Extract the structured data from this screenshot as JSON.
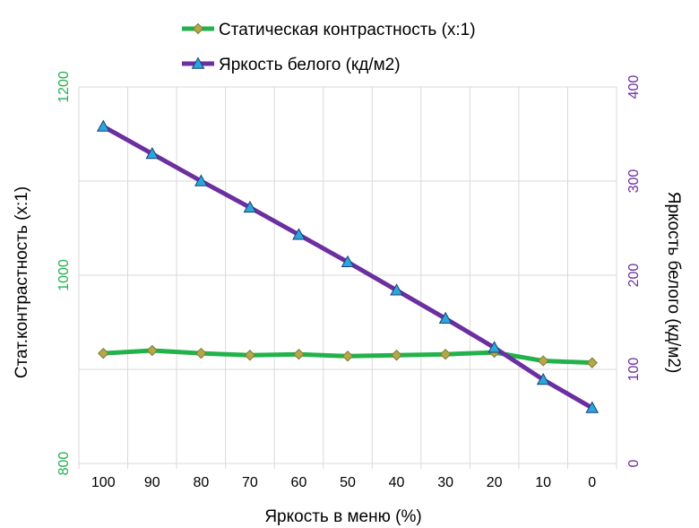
{
  "chart_data": {
    "type": "line",
    "title": "",
    "xlabel": "Яркость в меню (%)",
    "ylabel_left": "Стат.контрастность  (x:1)",
    "ylabel_right": "Яркость белого (кд/м2)",
    "categories": [
      "100",
      "90",
      "80",
      "70",
      "60",
      "50",
      "40",
      "30",
      "20",
      "10",
      "0"
    ],
    "y_left": {
      "range": [
        800,
        1200
      ],
      "ticks": [
        "800",
        "1000",
        "1200"
      ]
    },
    "y_right": {
      "range": [
        0,
        400
      ],
      "ticks": [
        "0",
        "100",
        "200",
        "300",
        "400"
      ]
    },
    "grid": true,
    "legend_position": "top",
    "series": [
      {
        "name": "Статическая контрастность (x:1)",
        "axis": "left",
        "color": "#22b24c",
        "marker": "diamond",
        "marker_color": "#b5a84a",
        "values": [
          917,
          920,
          917,
          915,
          916,
          914,
          915,
          916,
          918,
          909,
          907
        ]
      },
      {
        "name": "Яркость белого (кд/м2)",
        "axis": "right",
        "color": "#6b2fa0",
        "marker": "triangle",
        "marker_color": "#2aa7d8",
        "values": [
          358,
          329,
          300,
          272,
          243,
          214,
          184,
          154,
          123,
          89,
          59
        ]
      }
    ],
    "colors": {
      "left_axis": "#22b24c",
      "right_axis": "#7030a0",
      "grid": "#d9d9d9"
    }
  }
}
